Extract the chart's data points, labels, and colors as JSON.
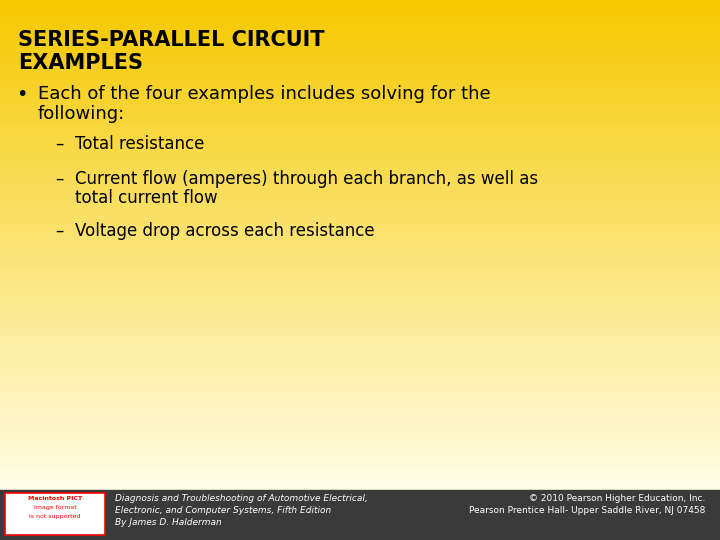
{
  "title_line1": "SERIES-PARALLEL CIRCUIT",
  "title_line2": "EXAMPLES",
  "bullet_text_line1": "Each of the four examples includes solving for the",
  "bullet_text_line2": "following:",
  "sub_bullets": [
    "Total resistance",
    "Current flow (amperes) through each branch, as well as\ntotal current flow",
    "Voltage drop across each resistance"
  ],
  "bg_color_top": "#F5C800",
  "bg_color_bottom": "#FFFEE8",
  "footer_bg": "#3A3A3A",
  "footer_left_line1": "Diagnosis and Troubleshooting of Automotive Electrical,",
  "footer_left_line2": "Electronic, and Computer Systems, Fifth Edition",
  "footer_left_line3": "By James D. Halderman",
  "footer_right_line1": "© 2010 Pearson Higher Education, Inc.",
  "footer_right_line2": "Pearson Prentice Hall- Upper Saddle River, NJ 07458",
  "title_fontsize": 15,
  "bullet_fontsize": 13,
  "sub_bullet_fontsize": 12,
  "footer_fontsize": 6.5
}
